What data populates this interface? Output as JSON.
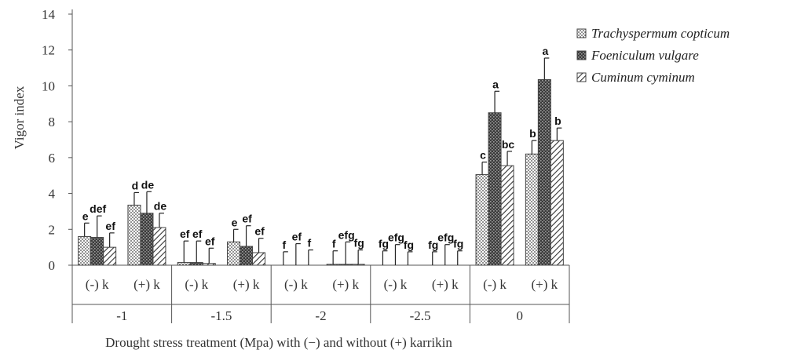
{
  "chart_data": {
    "type": "bar",
    "title": "",
    "ylabel": "Vigor index",
    "xlabel": "Drought stress treatment (Mpa) with (−) and without (+) karrikin",
    "ylim": [
      0,
      14
    ],
    "yticks": [
      0,
      2,
      4,
      6,
      8,
      10,
      12,
      14
    ],
    "grid": false,
    "legend_position": "right",
    "groups": [
      {
        "label": "-1",
        "subgroups": [
          "(-) k",
          "(+) k"
        ]
      },
      {
        "label": "-1.5",
        "subgroups": [
          "(-) k",
          "(+) k"
        ]
      },
      {
        "label": "-2",
        "subgroups": [
          "(-) k",
          "(+) k"
        ]
      },
      {
        "label": "-2.5",
        "subgroups": [
          "(-) k",
          "(+) k"
        ]
      },
      {
        "label": "0",
        "subgroups": [
          "(-) k",
          "(+) k"
        ]
      }
    ],
    "series": [
      {
        "name": "Trachyspermum copticum",
        "pattern": "dots",
        "values": [
          1.6,
          3.35,
          0.15,
          1.3,
          0,
          0.05,
          0,
          0,
          5.05,
          6.2
        ],
        "errors": [
          0.75,
          0.7,
          1.2,
          0.7,
          0.75,
          0.75,
          0.8,
          0.75,
          0.7,
          0.75
        ],
        "labels": [
          "e",
          "d",
          "ef",
          "e",
          "f",
          "f",
          "fg",
          "fg",
          "c",
          "b"
        ]
      },
      {
        "name": "Foeniculum vulgare",
        "pattern": "crosshatch",
        "values": [
          1.55,
          2.9,
          0.15,
          1.05,
          0,
          0.05,
          0,
          0,
          8.5,
          10.35
        ],
        "errors": [
          1.2,
          1.2,
          1.2,
          1.15,
          1.2,
          1.25,
          1.15,
          1.15,
          1.2,
          1.2
        ],
        "labels": [
          "def",
          "de",
          "ef",
          "ef",
          "ef",
          "efg",
          "efg",
          "efg",
          "a",
          "a"
        ]
      },
      {
        "name": "Cuminum cyminum",
        "pattern": "diagonal",
        "values": [
          1.0,
          2.1,
          0.1,
          0.7,
          0,
          0.05,
          0,
          0,
          5.55,
          6.95
        ],
        "errors": [
          0.8,
          0.8,
          0.85,
          0.8,
          0.85,
          0.8,
          0.75,
          0.8,
          0.8,
          0.7
        ],
        "labels": [
          "ef",
          "de",
          "ef",
          "ef",
          "f",
          "fg",
          "fg",
          "fg",
          "bc",
          "b"
        ]
      }
    ]
  }
}
